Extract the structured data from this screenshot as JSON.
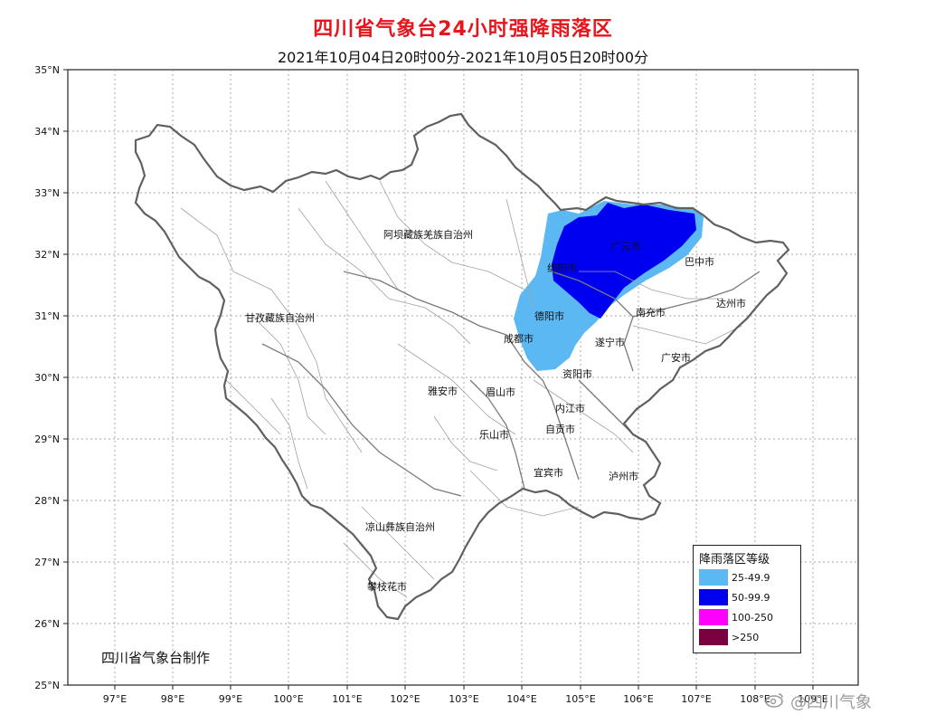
{
  "title": "四川省气象台24小时强降雨落区",
  "subtitle": "2021年10月04日20时00分-2021年10月05日20时00分",
  "lat_labels": [
    "35°N",
    "34°N",
    "33°N",
    "32°N",
    "31°N",
    "30°N",
    "29°N",
    "28°N",
    "27°N",
    "26°N",
    "25°N"
  ],
  "lon_labels": [
    "97°E",
    "98°E",
    "99°E",
    "100°E",
    "101°E",
    "102°E",
    "103°E",
    "104°E",
    "105°E",
    "106°E",
    "107°E",
    "108°E",
    "109°E"
  ],
  "region_labels": {
    "aba": "阿坝藏族羌族自治州",
    "ganzi": "甘孜藏族自治州",
    "liangshan": "凉山彝族自治州",
    "chengdu": "成都市",
    "deyang": "德阳市",
    "mianyang": "绵阳市",
    "guangyuan": "广元市",
    "bazhong": "巴中市",
    "dazhou": "达州市",
    "nanchong": "南充市",
    "suining": "遂宁市",
    "guangan": "广安市",
    "ziyang": "资阳市",
    "neijiang": "内江市",
    "zigong": "自贡市",
    "leshan": "乐山市",
    "meishan": "眉山市",
    "yaan": "雅安市",
    "yibin": "宜宾市",
    "luzhou": "泸州市",
    "panzhihua": "攀枝花市"
  },
  "legend": {
    "title": "降雨落区等级",
    "items": [
      {
        "label": "25-49.9",
        "color": "#5cb8f2"
      },
      {
        "label": "50-99.9",
        "color": "#0000f0"
      },
      {
        "label": "100-250",
        "color": "#ff00ff"
      },
      {
        "label": ">250",
        "color": "#7a0040"
      }
    ]
  },
  "credit": "四川省气象台制作",
  "watermark": "@四川气象",
  "colors": {
    "title": "#e8141b",
    "province_border": "#555555",
    "county_border": "#aaaaaa",
    "rain_25": "#5cb8f2",
    "rain_50": "#0000f0"
  }
}
